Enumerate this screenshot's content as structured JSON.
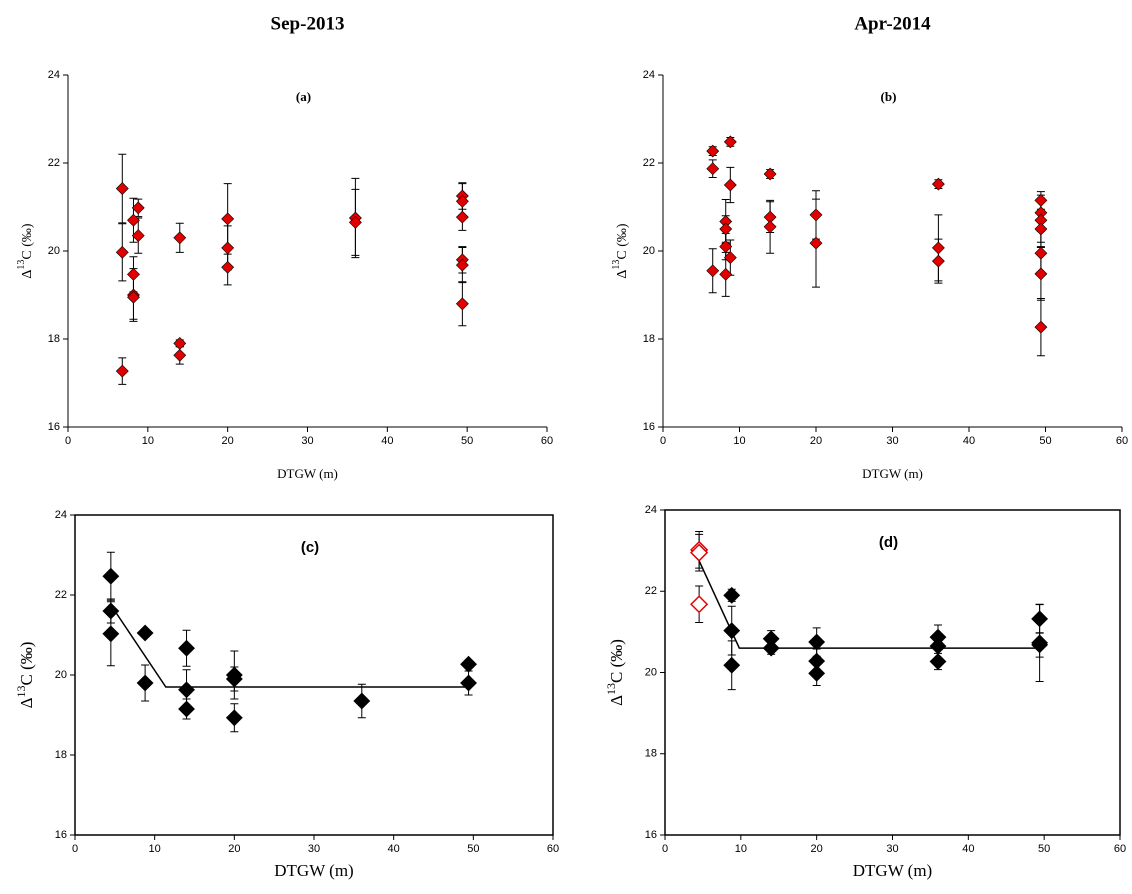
{
  "chart_data": [
    {
      "type": "scatter",
      "title": "Sep-2013",
      "label": "(a)",
      "xlabel": "DTGW (m)",
      "ylabel": [
        "Δ",
        "13",
        "C (‰)"
      ],
      "xlim": [
        0,
        60
      ],
      "ylim": [
        16,
        24
      ],
      "xticks": [
        0,
        10,
        20,
        30,
        40,
        50,
        60
      ],
      "yticks": [
        16,
        18,
        20,
        22,
        24
      ],
      "frame": false,
      "series": [
        {
          "type": "scatter",
          "color": "#e00000",
          "marker": "filled",
          "x": [
            6.8,
            6.8,
            6.8,
            8.2,
            8.2,
            8.2,
            8.2,
            8.8,
            8.8,
            14,
            14,
            14,
            20,
            20,
            20,
            36,
            36,
            49.4,
            49.4,
            49.4,
            49.4,
            49.4,
            49.4
          ],
          "values": [
            21.42,
            19.97,
            17.27,
            20.7,
            19.47,
            19.0,
            18.95,
            20.98,
            20.35,
            20.3,
            17.9,
            17.63,
            20.73,
            20.07,
            19.63,
            20.75,
            20.65,
            21.25,
            21.13,
            20.77,
            19.8,
            19.68,
            18.8
          ],
          "errors": [
            0.78,
            0.65,
            0.3,
            0.5,
            0.4,
            0.6,
            0.5,
            0.2,
            0.4,
            0.33,
            0.08,
            0.2,
            0.8,
            0.5,
            0.4,
            0.9,
            0.75,
            0.3,
            0.4,
            0.3,
            0.3,
            0.4,
            0.5
          ]
        }
      ]
    },
    {
      "type": "scatter",
      "title": "Apr-2014",
      "label": "(b)",
      "xlabel": "DTGW (m)",
      "ylabel": [
        "Δ",
        "13",
        "C (‰)"
      ],
      "xlim": [
        0,
        60
      ],
      "ylim": [
        16,
        24
      ],
      "xticks": [
        0,
        10,
        20,
        30,
        40,
        50,
        60
      ],
      "yticks": [
        16,
        18,
        20,
        22,
        24
      ],
      "frame": false,
      "series": [
        {
          "type": "scatter",
          "color": "#e00000",
          "marker": "filled",
          "x": [
            6.5,
            6.5,
            6.5,
            8.2,
            8.2,
            8.2,
            8.2,
            8.8,
            8.8,
            8.8,
            14,
            14,
            14,
            20,
            20,
            36,
            36,
            36,
            49.4,
            49.4,
            49.4,
            49.4,
            49.4,
            49.4,
            49.4
          ],
          "values": [
            22.27,
            21.87,
            19.55,
            20.67,
            20.5,
            20.1,
            19.47,
            22.48,
            21.5,
            19.85,
            21.75,
            20.77,
            20.55,
            20.82,
            20.18,
            21.52,
            20.07,
            19.77,
            21.15,
            20.87,
            20.7,
            20.5,
            19.95,
            19.48,
            18.27
          ],
          "errors": [
            0.1,
            0.2,
            0.5,
            0.5,
            0.3,
            0.3,
            0.5,
            0.1,
            0.4,
            0.4,
            0.1,
            0.35,
            0.6,
            0.55,
            1.0,
            0.1,
            0.75,
            0.5,
            0.2,
            0.4,
            0.5,
            0.4,
            0.5,
            0.6,
            0.65
          ]
        }
      ]
    },
    {
      "type": "scatter",
      "label": "(c)",
      "xlabel": "DTGW (m)",
      "ylabel": [
        "Δ",
        "13",
        "C (‰)"
      ],
      "xlim": [
        0,
        60
      ],
      "ylim": [
        16,
        24
      ],
      "xticks": [
        0,
        10,
        20,
        30,
        40,
        50,
        60
      ],
      "yticks": [
        16,
        18,
        20,
        22,
        24
      ],
      "frame": true,
      "series": [
        {
          "type": "scatter",
          "color": "#000000",
          "marker": "filled",
          "x": [
            4.5,
            4.5,
            4.5,
            8.8,
            8.8,
            14,
            14,
            14,
            20,
            20,
            20,
            36,
            49.4,
            49.4
          ],
          "values": [
            22.47,
            21.6,
            21.03,
            21.05,
            19.8,
            20.67,
            19.63,
            19.15,
            20.0,
            19.9,
            18.93,
            19.35,
            20.27,
            19.8
          ],
          "errors": [
            0.6,
            0.3,
            0.8,
            0.1,
            0.45,
            0.45,
            0.5,
            0.25,
            0.6,
            0.3,
            0.35,
            0.42,
            0.1,
            0.3
          ]
        },
        {
          "type": "line",
          "color": "#000000",
          "x": [
            4.5,
            11.4,
            49.4
          ],
          "values": [
            21.75,
            19.7,
            19.7
          ]
        }
      ]
    },
    {
      "type": "scatter",
      "label": "(d)",
      "xlabel": "DTGW (m)",
      "ylabel": [
        "Δ",
        "13",
        "C (‰)"
      ],
      "xlim": [
        0,
        60
      ],
      "ylim": [
        16,
        24
      ],
      "xticks": [
        0,
        10,
        20,
        30,
        40,
        50,
        60
      ],
      "yticks": [
        16,
        18,
        20,
        22,
        24
      ],
      "frame": true,
      "series": [
        {
          "type": "scatter",
          "color": "#000000",
          "marker": "filled",
          "x": [
            8.8,
            8.8,
            8.8,
            14,
            14,
            20,
            20,
            20,
            36,
            36,
            36,
            49.4,
            49.4,
            49.4
          ],
          "values": [
            21.9,
            21.03,
            20.18,
            20.83,
            20.6,
            20.75,
            20.28,
            19.98,
            20.87,
            20.65,
            20.27,
            21.32,
            20.73,
            20.68
          ],
          "errors": [
            0.15,
            0.6,
            0.6,
            0.2,
            0.15,
            0.35,
            0.3,
            0.3,
            0.3,
            0.3,
            0.2,
            0.35,
            0.95,
            0.3
          ]
        },
        {
          "type": "scatter",
          "color": "#e00000",
          "marker": "open",
          "x": [
            4.5,
            4.5,
            4.5
          ],
          "values": [
            23.02,
            22.95,
            21.68
          ],
          "errors": [
            0.45,
            0.45,
            0.45
          ]
        },
        {
          "type": "line",
          "color": "#000000",
          "x": [
            4.5,
            9.8,
            49.4
          ],
          "values": [
            22.75,
            20.6,
            20.6
          ]
        }
      ]
    }
  ]
}
